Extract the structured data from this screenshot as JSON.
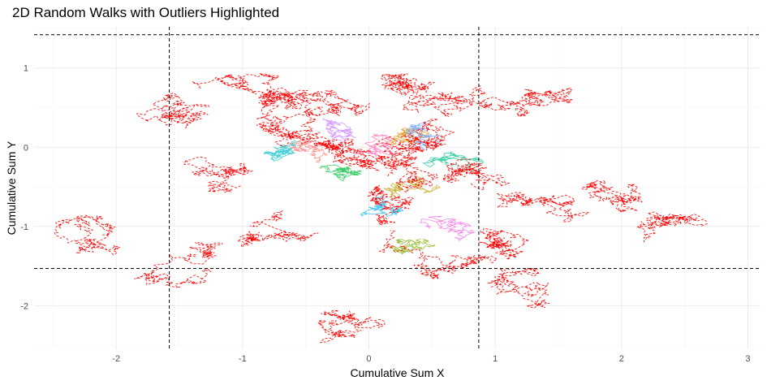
{
  "chart_data": {
    "type": "line",
    "title": "2D Random Walks with Outliers Highlighted",
    "xlabel": "Cumulative Sum X",
    "ylabel": "Cumulative Sum Y",
    "xlim": [
      -2.65,
      3.1
    ],
    "ylim": [
      -2.55,
      1.52
    ],
    "xticks": [
      -2,
      -1,
      0,
      1,
      2,
      3
    ],
    "yticks": [
      -2,
      -1,
      0,
      1
    ],
    "grid": true,
    "legend": "none",
    "reference_lines": {
      "vertical": [
        -1.58,
        0.87
      ],
      "horizontal": [
        -1.53,
        1.42
      ],
      "style": "dashed",
      "color": "#000000"
    },
    "outlier_color": "#ff0000",
    "series_colors": [
      "#f8766d",
      "#de8c00",
      "#b79f00",
      "#7cae00",
      "#00ba38",
      "#00c08b",
      "#00bfc4",
      "#00b4f0",
      "#619cff",
      "#c77cff",
      "#f564e3",
      "#ff64b0"
    ],
    "outlier_walk_centers": [
      [
        -0.2,
        0.45
      ],
      [
        0.3,
        0.7
      ],
      [
        -0.9,
        0.75
      ],
      [
        -1.5,
        0.5
      ],
      [
        0.0,
        0.05
      ],
      [
        -0.3,
        -0.1
      ],
      [
        0.4,
        0.1
      ],
      [
        -0.6,
        0.2
      ],
      [
        0.9,
        0.55
      ],
      [
        1.2,
        0.6
      ],
      [
        -2.1,
        -1.2
      ],
      [
        -1.3,
        -1.4
      ],
      [
        -0.7,
        -0.9
      ],
      [
        -0.3,
        -2.1
      ],
      [
        0.1,
        -0.9
      ],
      [
        0.5,
        -1.4
      ],
      [
        1.0,
        -1.3
      ],
      [
        1.6,
        -0.7
      ],
      [
        2.0,
        -0.65
      ],
      [
        2.5,
        -0.95
      ],
      [
        0.7,
        -0.3
      ],
      [
        -1.0,
        -0.5
      ],
      [
        1.3,
        -1.6
      ],
      [
        0.2,
        -0.4
      ],
      [
        -0.5,
        0.6
      ]
    ],
    "regular_walk_centers": [
      [
        -0.5,
        -0.05
      ],
      [
        0.3,
        0.15
      ],
      [
        0.2,
        -0.5
      ],
      [
        0.4,
        -1.2
      ],
      [
        -0.2,
        -0.3
      ],
      [
        0.6,
        -0.1
      ],
      [
        -0.7,
        0.0
      ],
      [
        0.1,
        -0.8
      ],
      [
        0.5,
        0.1
      ],
      [
        -0.3,
        0.2
      ],
      [
        0.45,
        -1.0
      ],
      [
        0.0,
        0.0
      ]
    ]
  }
}
